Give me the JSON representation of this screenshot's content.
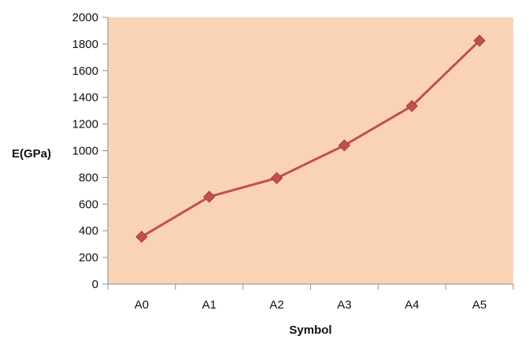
{
  "chart_data": {
    "type": "line",
    "title": "",
    "xlabel": "Symbol",
    "ylabel": "E(GPa)",
    "categories": [
      "A0",
      "A1",
      "A2",
      "A3",
      "A4",
      "A5"
    ],
    "series": [
      {
        "values": [
          355,
          655,
          795,
          1040,
          1335,
          1825
        ]
      }
    ],
    "ylim": [
      0,
      2000
    ],
    "yticks": [
      0,
      200,
      400,
      600,
      800,
      1000,
      1200,
      1400,
      1600,
      1800,
      2000
    ],
    "grid": false,
    "legend": "none",
    "colors": {
      "plot_background": "#fad3b7",
      "line": "#c0504d",
      "marker": "#c0504d",
      "axis": "#8f8f8f"
    },
    "marker": "diamond"
  }
}
